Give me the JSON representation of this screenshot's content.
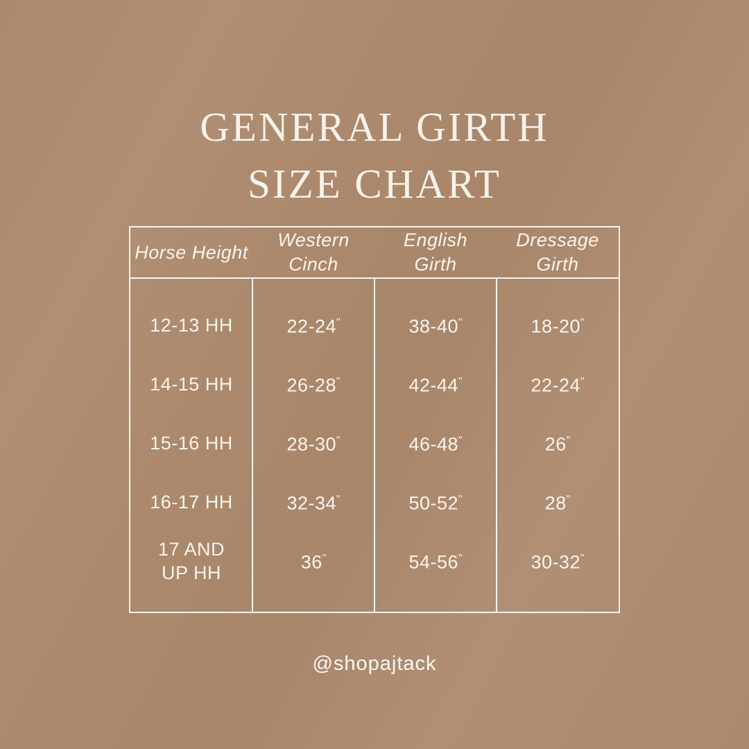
{
  "title": {
    "line1": "GENERAL GIRTH",
    "line2": "SIZE CHART"
  },
  "chart_data": {
    "type": "table",
    "title": "GENERAL GIRTH SIZE CHART",
    "columns": [
      [
        "Horse Height"
      ],
      [
        "Western",
        "Cinch"
      ],
      [
        "English",
        "Girth"
      ],
      [
        "Dressage",
        "Girth"
      ]
    ],
    "rows": [
      [
        "12-13 HH",
        "22-24\"",
        "38-40\"",
        "18-20\""
      ],
      [
        "14-15 HH",
        "26-28\"",
        "42-44\"",
        "22-24\""
      ],
      [
        "15-16 HH",
        "28-30\"",
        "46-48\"",
        "26\""
      ],
      [
        "16-17 HH",
        "32-34\"",
        "50-52\"",
        "28\""
      ],
      [
        "17 AND\nUP HH",
        "36\"",
        "54-56\"",
        "30-32\""
      ]
    ]
  },
  "footer": {
    "handle": "@shopajtack"
  },
  "colors": {
    "background": "#ac896d",
    "text": "#f8f4ee",
    "border": "#f8f4ee"
  }
}
